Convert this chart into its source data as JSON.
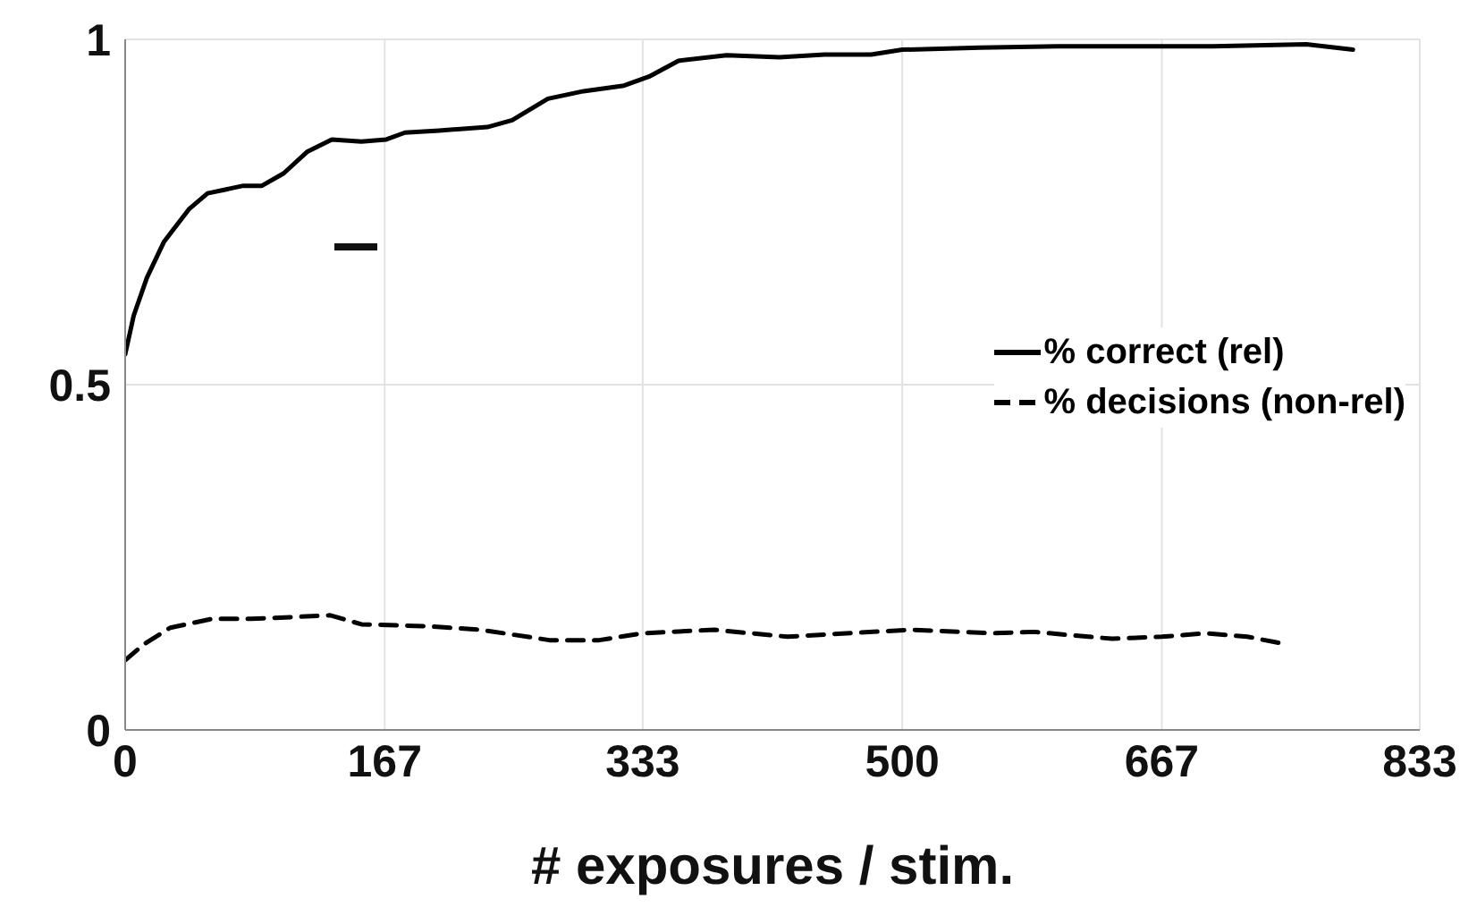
{
  "chart_data": {
    "type": "line",
    "xlabel": "# exposures / stim.",
    "xlim": [
      0,
      833
    ],
    "ylim": [
      0,
      1
    ],
    "xticks": [
      0,
      167,
      333,
      500,
      667,
      833
    ],
    "yticks": [
      0,
      0.5,
      1
    ],
    "grid": true,
    "legend": "right",
    "marker": "none",
    "series": [
      {
        "name": "% correct (rel)",
        "color": "#000000",
        "line_style": "solid",
        "x": [
          0,
          5.5,
          14,
          25,
          41,
          53,
          76,
          88,
          102,
          117,
          133,
          152,
          168,
          180,
          202,
          233,
          249,
          272,
          295,
          321,
          337,
          356,
          387,
          421,
          450,
          480,
          500,
          550,
          600,
          700,
          760,
          790
        ],
        "values": [
          0.544,
          0.6,
          0.655,
          0.707,
          0.754,
          0.777,
          0.788,
          0.788,
          0.806,
          0.837,
          0.855,
          0.852,
          0.855,
          0.865,
          0.868,
          0.873,
          0.883,
          0.914,
          0.925,
          0.933,
          0.946,
          0.969,
          0.977,
          0.974,
          0.978,
          0.978,
          0.985,
          0.988,
          0.99,
          0.99,
          0.993,
          0.985
        ]
      },
      {
        "name": "% decisions (non-rel)",
        "color": "#000000",
        "line_style": "dashed",
        "x": [
          0,
          12,
          29,
          56,
          81,
          103,
          132,
          152,
          196,
          229,
          273,
          305,
          333,
          379,
          426,
          464,
          506,
          558,
          585,
          635,
          667,
          695,
          722,
          747
        ],
        "values": [
          0.101,
          0.124,
          0.148,
          0.161,
          0.161,
          0.163,
          0.166,
          0.153,
          0.15,
          0.145,
          0.13,
          0.13,
          0.14,
          0.145,
          0.135,
          0.14,
          0.145,
          0.14,
          0.142,
          0.132,
          0.135,
          0.14,
          0.135,
          0.124
        ]
      }
    ]
  }
}
